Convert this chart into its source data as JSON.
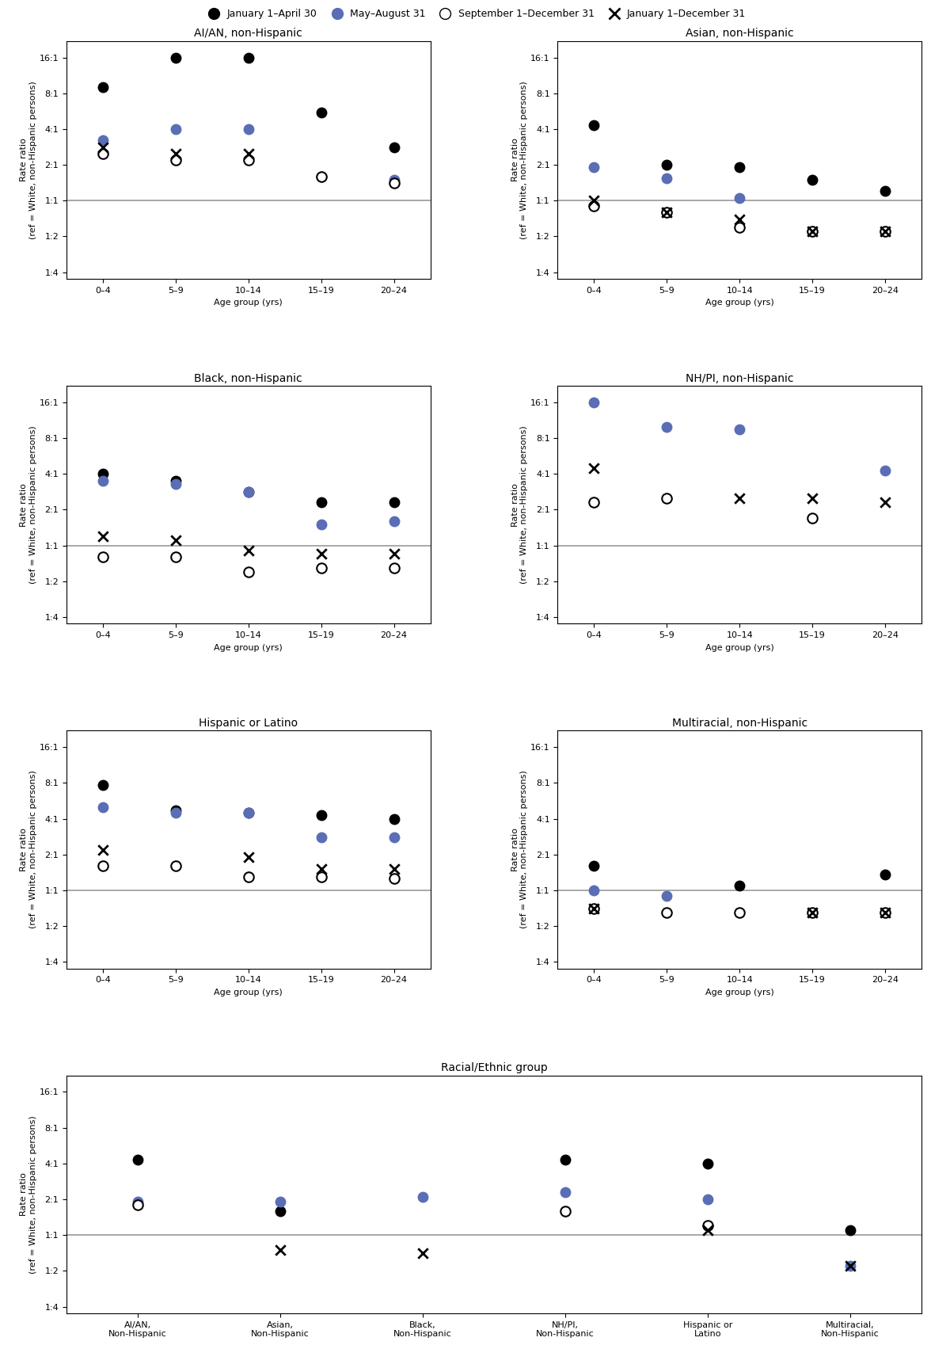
{
  "legend_labels": [
    "January 1–April 30",
    "May–August 31",
    "September 1–December 31",
    "January 1–December 31"
  ],
  "age_groups": [
    "0–4",
    "5–9",
    "10–14",
    "15–19",
    "20–24"
  ],
  "age_x": [
    0,
    1,
    2,
    3,
    4
  ],
  "reference_line": 1.0,
  "subplots": [
    {
      "title": "AI/AN, non-Hispanic",
      "black": [
        9.0,
        16.0,
        16.0,
        5.5,
        2.8
      ],
      "blue": [
        3.2,
        4.0,
        4.0,
        1.6,
        1.5
      ],
      "open": [
        2.5,
        2.2,
        2.2,
        1.6,
        1.4
      ],
      "cross": [
        2.8,
        2.5,
        2.5,
        null,
        null
      ]
    },
    {
      "title": "Asian, non-Hispanic",
      "black": [
        4.3,
        2.0,
        1.9,
        1.5,
        1.2
      ],
      "blue": [
        1.9,
        1.55,
        1.05,
        0.55,
        0.55
      ],
      "open": [
        0.9,
        0.8,
        0.6,
        0.55,
        0.55
      ],
      "cross": [
        1.0,
        0.8,
        0.7,
        0.55,
        0.55
      ]
    },
    {
      "title": "Black, non-Hispanic",
      "black": [
        4.0,
        3.5,
        2.8,
        2.3,
        2.3
      ],
      "blue": [
        3.5,
        3.3,
        2.8,
        1.5,
        1.6
      ],
      "open": [
        0.8,
        0.8,
        0.6,
        0.65,
        0.65
      ],
      "cross": [
        1.2,
        1.1,
        0.9,
        0.85,
        0.85
      ]
    },
    {
      "title": "NH/PI, non-Hispanic",
      "black": [
        null,
        null,
        null,
        null,
        null
      ],
      "blue": [
        16.0,
        10.0,
        9.5,
        null,
        4.3
      ],
      "open": [
        2.3,
        2.5,
        null,
        1.7,
        null
      ],
      "cross": [
        4.5,
        null,
        2.5,
        2.5,
        2.3
      ]
    },
    {
      "title": "Hispanic or Latino",
      "black": [
        7.7,
        4.7,
        4.5,
        4.3,
        4.0
      ],
      "blue": [
        5.0,
        4.5,
        4.5,
        2.8,
        2.8
      ],
      "open": [
        1.6,
        1.6,
        1.3,
        1.3,
        1.25
      ],
      "cross": [
        2.2,
        null,
        1.9,
        1.5,
        1.5
      ]
    },
    {
      "title": "Multiracial, non-Hispanic",
      "black": [
        1.6,
        null,
        1.1,
        null,
        1.35
      ],
      "blue": [
        1.0,
        0.9,
        null,
        null,
        null
      ],
      "open": [
        0.7,
        0.65,
        0.65,
        0.65,
        0.65
      ],
      "cross": [
        0.7,
        null,
        null,
        0.65,
        0.65
      ]
    }
  ],
  "bottom_plot": {
    "title": "Racial/Ethnic group",
    "categories": [
      "AI/AN,\nNon-Hispanic",
      "Asian,\nNon-Hispanic",
      "Black,\nNon-Hispanic",
      "NH/PI,\nNon-Hispanic",
      "Hispanic or\nLatino",
      "Multiracial,\nNon-Hispanic"
    ],
    "black": [
      4.3,
      1.6,
      null,
      4.3,
      4.0,
      1.1
    ],
    "blue": [
      1.9,
      1.9,
      2.1,
      2.3,
      2.0,
      0.55
    ],
    "open": [
      1.8,
      null,
      null,
      1.6,
      1.2,
      null
    ],
    "cross": [
      null,
      0.75,
      0.7,
      null,
      1.1,
      0.55
    ]
  },
  "colors": {
    "black": "#000000",
    "blue": "#5a6eb5",
    "open": "#ffffff",
    "cross_color": "#000000",
    "ref_line": "#999999"
  }
}
